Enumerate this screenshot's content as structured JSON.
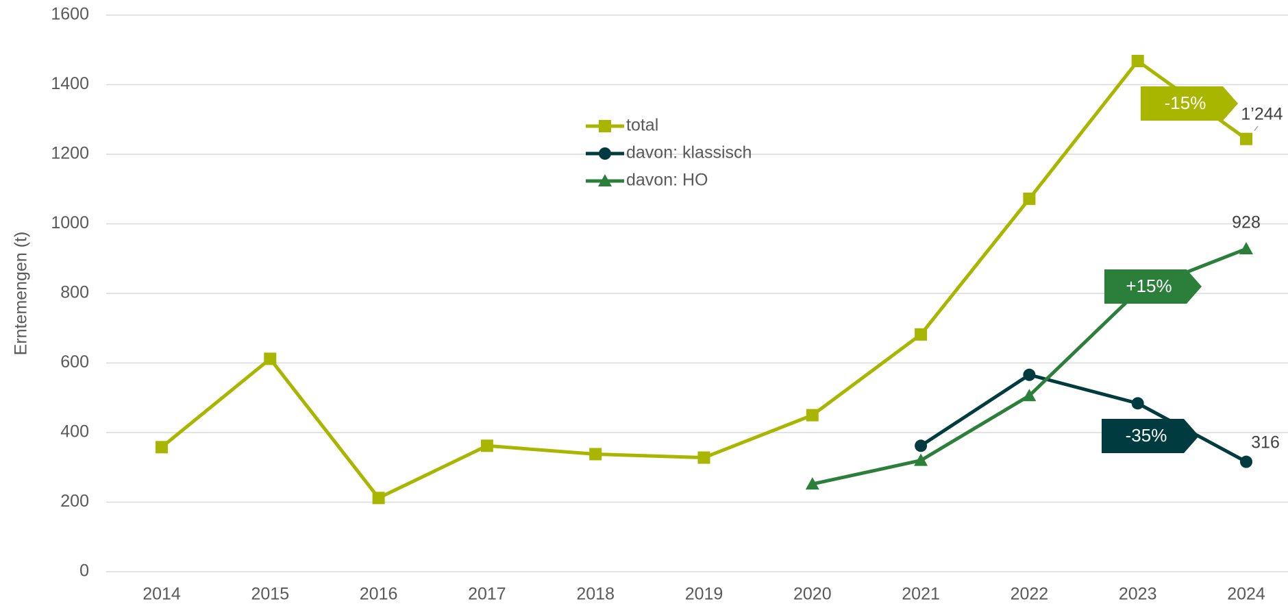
{
  "chart_data": {
    "type": "line",
    "y_label": "Erntemengen (t)",
    "categories": [
      "2014",
      "2015",
      "2016",
      "2017",
      "2018",
      "2019",
      "2020",
      "2021",
      "2022",
      "2023",
      "2024"
    ],
    "series": [
      {
        "name": "total",
        "color": "#a9b600",
        "marker": "square",
        "values": [
          358,
          612,
          212,
          362,
          338,
          328,
          450,
          682,
          1072,
          1468,
          1244
        ],
        "value_labels": [
          null,
          null,
          null,
          null,
          null,
          null,
          null,
          null,
          null,
          null,
          "1’244"
        ]
      },
      {
        "name": "davon: klassisch",
        "color": "#003b40",
        "marker": "circle",
        "values": [
          null,
          null,
          null,
          null,
          null,
          null,
          null,
          362,
          566,
          484,
          316
        ],
        "value_labels": [
          null,
          null,
          null,
          null,
          null,
          null,
          null,
          null,
          null,
          null,
          "316"
        ]
      },
      {
        "name": "davon: HO",
        "color": "#2b7f3b",
        "marker": "triangle",
        "values": [
          null,
          null,
          null,
          null,
          null,
          null,
          252,
          320,
          506,
          806,
          928
        ],
        "value_labels": [
          null,
          null,
          null,
          null,
          null,
          null,
          null,
          null,
          null,
          null,
          "928"
        ]
      }
    ],
    "annotations": [
      "-15%",
      "-35%",
      "+15%"
    ],
    "ylim": [
      0,
      1600
    ],
    "yticks": [
      0,
      200,
      400,
      600,
      800,
      1000,
      1200,
      1400,
      1600
    ],
    "grid": true,
    "legend": "upper center"
  }
}
